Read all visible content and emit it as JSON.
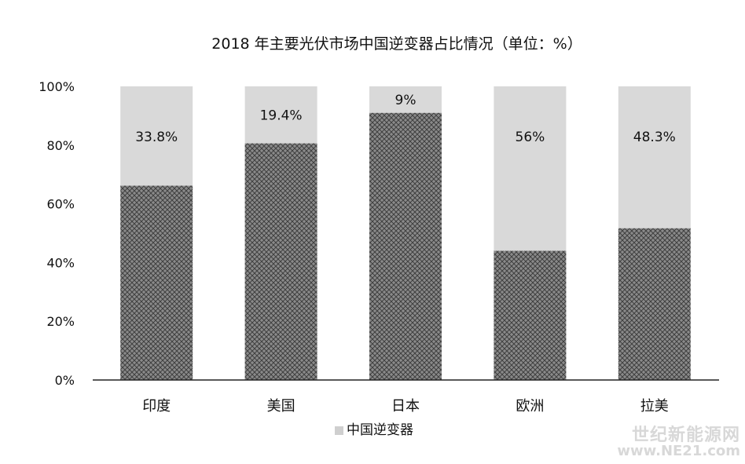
{
  "chart_data": {
    "type": "bar",
    "stacked": true,
    "title": "2018 年主要光伏市场中国逆变器占比情况（单位：%）",
    "categories": [
      "印度",
      "美国",
      "日本",
      "欧洲",
      "拉美"
    ],
    "series": [
      {
        "name": "",
        "values": [
          66.2,
          80.6,
          91,
          44,
          51.7
        ],
        "color": "#6f6f6f",
        "pattern": "crosshatch"
      },
      {
        "name": "中国逆变器",
        "values": [
          33.8,
          19.4,
          9,
          56,
          48.3
        ],
        "color": "#d9d9d9",
        "labels": [
          "33.8%",
          "19.4%",
          "9%",
          "56%",
          "48.3%"
        ]
      }
    ],
    "ylim": [
      0,
      100
    ],
    "yticks": [
      "0%",
      "20%",
      "40%",
      "60%",
      "80%",
      "100%"
    ],
    "legend": "bottom-center",
    "grid": false
  },
  "watermark": {
    "line1": "世纪新能源网",
    "line2": "www.NE21.com"
  }
}
